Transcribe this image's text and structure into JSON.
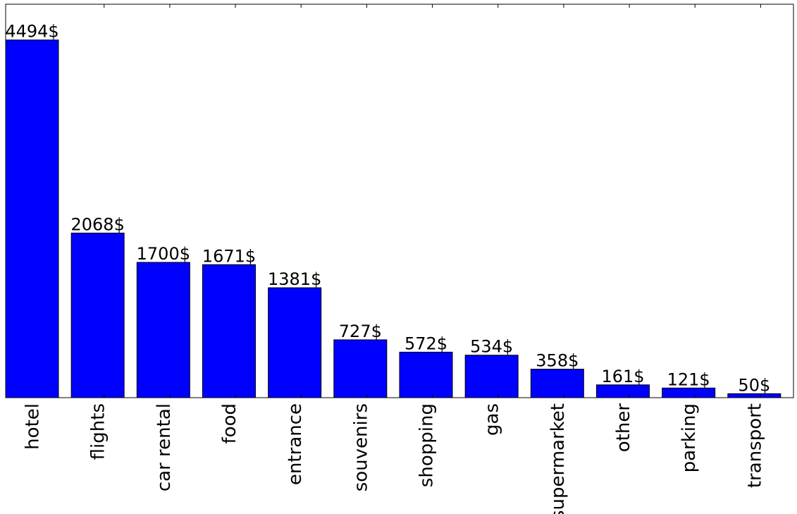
{
  "chart_data": {
    "type": "bar",
    "categories": [
      "hotel",
      "flights",
      "car rental",
      "food",
      "entrance",
      "souvenirs",
      "shopping",
      "gas",
      "supermarket",
      "other",
      "parking",
      "transport"
    ],
    "values": [
      4494,
      2068,
      1700,
      1671,
      1381,
      727,
      572,
      534,
      358,
      161,
      121,
      50
    ],
    "value_labels": [
      "4494$",
      "2068$",
      "1700$",
      "1671$",
      "1381$",
      "727$",
      "572$",
      "534$",
      "358$",
      "161$",
      "121$",
      "50$"
    ],
    "color": "#0000ff",
    "ylim": [
      0,
      4943
    ]
  }
}
